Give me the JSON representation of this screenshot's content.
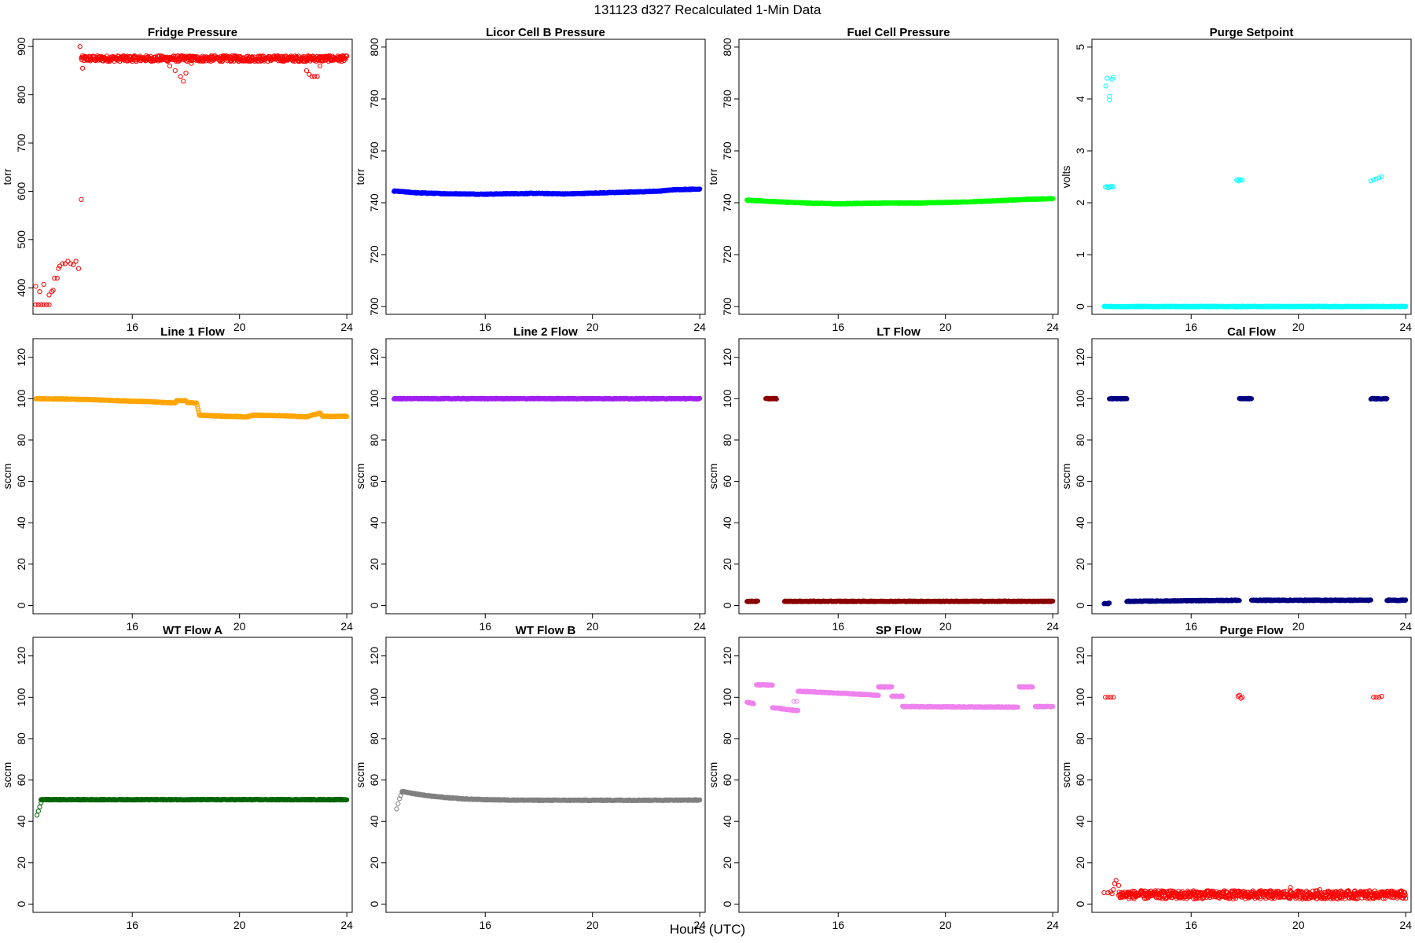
{
  "figure": {
    "title": "131123   d327   Recalculated 1-Min Data",
    "xlabel": "Hours (UTC)"
  },
  "chart_data": [
    {
      "type": "scatter",
      "title": "Fridge Pressure",
      "ylabel": "torr",
      "color": "#ff0000",
      "xlim": [
        12.3,
        24.2
      ],
      "ylim": [
        345,
        915
      ],
      "xticks": [
        16,
        20,
        24
      ],
      "yticks": [
        400,
        500,
        600,
        700,
        800,
        900
      ],
      "series": [
        {
          "x": [
            12.4,
            12.5,
            12.6,
            12.7,
            12.8,
            12.9
          ],
          "y": [
            365,
            365,
            365,
            365,
            365,
            365
          ]
        },
        {
          "x": [
            12.4,
            12.55,
            12.7
          ],
          "y": [
            403,
            392,
            407
          ]
        },
        {
          "x": [
            12.9,
            13.0,
            13.05,
            13.1,
            13.2,
            13.25,
            13.3,
            13.4,
            13.5,
            13.6,
            13.7,
            13.8,
            13.9,
            14.0
          ],
          "y": [
            385,
            392,
            395,
            420,
            420,
            440,
            445,
            450,
            450,
            455,
            450,
            448,
            455,
            440
          ]
        },
        {
          "x": [
            14.1,
            14.05,
            14.15
          ],
          "y": [
            583,
            900,
            855
          ]
        },
        {
          "x": [
            14.1,
            24.0
          ],
          "y": [
            875,
            875
          ],
          "band": true,
          "noise": 6
        },
        {
          "x": [
            17.4,
            17.6,
            17.8,
            17.9,
            18.0,
            18.2
          ],
          "y": [
            860,
            850,
            838,
            828,
            845,
            865
          ]
        },
        {
          "x": [
            22.5,
            22.6,
            22.7,
            22.8,
            22.9,
            23.0,
            23.1
          ],
          "y": [
            850,
            842,
            838,
            838,
            838,
            860,
            870
          ]
        }
      ]
    },
    {
      "type": "line",
      "title": "Licor Cell B Pressure",
      "ylabel": "torr",
      "color": "#0000ff",
      "xlim": [
        12.3,
        24.2
      ],
      "ylim": [
        697,
        803
      ],
      "xticks": [
        16,
        20,
        24
      ],
      "yticks": [
        700,
        720,
        740,
        760,
        780,
        800
      ],
      "series": [
        {
          "x": [
            12.6,
            13.5,
            14.5,
            16.0,
            17.0,
            18.0,
            19.0,
            20.0,
            21.0,
            22.0,
            22.5,
            23.0,
            24.0
          ],
          "y": [
            744.5,
            743.8,
            743.5,
            743.3,
            743.5,
            743.6,
            743.4,
            743.7,
            744.0,
            744.3,
            744.5,
            745.0,
            745.3
          ],
          "band": true
        }
      ]
    },
    {
      "type": "line",
      "title": "Fuel Cell Pressure",
      "ylabel": "torr",
      "color": "#00ff00",
      "xlim": [
        12.3,
        24.2
      ],
      "ylim": [
        697,
        803
      ],
      "xticks": [
        16,
        20,
        24
      ],
      "yticks": [
        700,
        720,
        740,
        760,
        780,
        800
      ],
      "series": [
        {
          "x": [
            12.6,
            13.5,
            14.5,
            16.0,
            17.0,
            18.0,
            19.0,
            20.0,
            21.0,
            22.0,
            23.0,
            24.0
          ],
          "y": [
            741.0,
            740.5,
            740.0,
            739.6,
            739.8,
            739.9,
            739.9,
            740.1,
            740.4,
            740.8,
            741.3,
            741.6
          ],
          "band": true
        }
      ]
    },
    {
      "type": "scatter",
      "title": "Purge Setpoint",
      "ylabel": "volts",
      "color": "#00ffff",
      "xlim": [
        12.3,
        24.2
      ],
      "ylim": [
        -0.15,
        5.15
      ],
      "xticks": [
        16,
        20,
        24
      ],
      "yticks": [
        0,
        1,
        2,
        3,
        4,
        5
      ],
      "series": [
        {
          "x": [
            12.75,
            24.0
          ],
          "y": [
            0,
            0
          ],
          "band": true
        },
        {
          "x": [
            12.8,
            12.85,
            12.9,
            12.95,
            13.0,
            13.05,
            13.1
          ],
          "y": [
            2.3,
            2.31,
            2.29,
            2.3,
            2.32,
            2.3,
            2.31
          ]
        },
        {
          "x": [
            12.82,
            12.87,
            12.95,
            13.05,
            13.1
          ],
          "y": [
            4.25,
            4.4,
            4.05,
            4.38,
            4.42
          ]
        },
        {
          "x": [
            12.95
          ],
          "y": [
            3.98
          ]
        },
        {
          "x": [
            17.7,
            17.75,
            17.8,
            17.85,
            17.9
          ],
          "y": [
            2.44,
            2.42,
            2.45,
            2.43,
            2.44
          ]
        },
        {
          "x": [
            22.7,
            22.8,
            22.9,
            23.0,
            23.1
          ],
          "y": [
            2.42,
            2.44,
            2.46,
            2.48,
            2.5
          ]
        }
      ]
    },
    {
      "type": "line",
      "title": "Line 1 Flow",
      "ylabel": "sccm",
      "color": "#ffa500",
      "xlim": [
        12.3,
        24.2
      ],
      "ylim": [
        -4,
        129
      ],
      "xticks": [
        16,
        20,
        24
      ],
      "yticks": [
        0,
        20,
        40,
        60,
        80,
        100,
        120
      ],
      "series": [
        {
          "x": [
            12.4,
            13.5,
            14.5,
            15.5,
            16.5,
            17.5,
            17.6,
            17.65,
            18.0,
            18.05,
            18.4,
            18.5,
            19.5,
            20.3,
            20.5,
            21.5,
            22.5,
            22.7,
            23.0,
            23.1,
            23.3,
            24.0
          ],
          "y": [
            100,
            99.8,
            99.5,
            99.0,
            98.6,
            98.0,
            98.0,
            99.0,
            99.0,
            98.0,
            98.0,
            92.0,
            91.5,
            91.2,
            92.0,
            91.8,
            91.2,
            92.0,
            93.0,
            91.5,
            91.4,
            91.5
          ],
          "band": true
        }
      ]
    },
    {
      "type": "line",
      "title": "Line 2 Flow",
      "ylabel": "sccm",
      "color": "#a020f0",
      "xlim": [
        12.3,
        24.2
      ],
      "ylim": [
        -4,
        129
      ],
      "xticks": [
        16,
        20,
        24
      ],
      "yticks": [
        0,
        20,
        40,
        60,
        80,
        100,
        120
      ],
      "series": [
        {
          "x": [
            12.6,
            24.0
          ],
          "y": [
            100,
            100
          ],
          "band": true
        }
      ]
    },
    {
      "type": "scatter",
      "title": "LT Flow",
      "ylabel": "sccm",
      "color": "#8b0000",
      "xlim": [
        12.3,
        24.2
      ],
      "ylim": [
        -4,
        129
      ],
      "xticks": [
        16,
        20,
        24
      ],
      "yticks": [
        0,
        20,
        40,
        60,
        80,
        100,
        120
      ],
      "series": [
        {
          "x": [
            12.6,
            13.0
          ],
          "y": [
            2,
            2
          ],
          "band": true
        },
        {
          "x": [
            13.3,
            13.7
          ],
          "y": [
            100,
            100
          ],
          "band": true
        },
        {
          "x": [
            14.0,
            24.0
          ],
          "y": [
            2,
            2
          ],
          "band": true
        }
      ]
    },
    {
      "type": "scatter",
      "title": "Cal Flow",
      "ylabel": "sccm",
      "color": "#000080",
      "xlim": [
        12.3,
        24.2
      ],
      "ylim": [
        -4,
        129
      ],
      "xticks": [
        16,
        20,
        24
      ],
      "yticks": [
        0,
        20,
        40,
        60,
        80,
        100,
        120
      ],
      "series": [
        {
          "x": [
            12.75,
            12.95
          ],
          "y": [
            1,
            1
          ],
          "band": true
        },
        {
          "x": [
            12.95,
            13.6
          ],
          "y": [
            100,
            100
          ],
          "band": true
        },
        {
          "x": [
            13.6,
            17.8
          ],
          "y": [
            2,
            2.5
          ],
          "band": true
        },
        {
          "x": [
            17.8,
            18.25
          ],
          "y": [
            100,
            100
          ],
          "band": true
        },
        {
          "x": [
            18.25,
            22.7
          ],
          "y": [
            2.5,
            2.5
          ],
          "band": true
        },
        {
          "x": [
            22.7,
            23.3
          ],
          "y": [
            100,
            100
          ],
          "band": true
        },
        {
          "x": [
            23.3,
            24.0
          ],
          "y": [
            2.5,
            2.5
          ],
          "band": true
        }
      ]
    },
    {
      "type": "line",
      "title": "WT Flow A",
      "ylabel": "sccm",
      "color": "#006400",
      "xlim": [
        12.3,
        24.2
      ],
      "ylim": [
        -4,
        129
      ],
      "xticks": [
        16,
        20,
        24
      ],
      "yticks": [
        0,
        20,
        40,
        60,
        80,
        100,
        120
      ],
      "series": [
        {
          "x": [
            12.45,
            12.5,
            12.55,
            12.6
          ],
          "y": [
            43,
            45,
            47,
            49
          ]
        },
        {
          "x": [
            12.6,
            24.0
          ],
          "y": [
            50.5,
            50.5
          ],
          "band": true
        }
      ]
    },
    {
      "type": "line",
      "title": "WT Flow B",
      "ylabel": "sccm",
      "color": "#808080",
      "xlim": [
        12.3,
        24.2
      ],
      "ylim": [
        -4,
        129
      ],
      "xticks": [
        16,
        20,
        24
      ],
      "yticks": [
        0,
        20,
        40,
        60,
        80,
        100,
        120
      ],
      "series": [
        {
          "x": [
            12.7,
            12.75,
            12.8,
            12.85,
            12.9
          ],
          "y": [
            46,
            48.5,
            51,
            52.5,
            54
          ]
        },
        {
          "x": [
            12.9,
            13.3,
            13.8,
            14.5,
            15.3,
            16.0,
            17.0,
            18.0,
            20.0,
            22.0,
            24.0
          ],
          "y": [
            54.5,
            53.5,
            52.5,
            51.5,
            50.8,
            50.5,
            50.3,
            50.2,
            50.2,
            50.2,
            50.3
          ],
          "band": true
        }
      ]
    },
    {
      "type": "line",
      "title": "SP Flow",
      "ylabel": "sccm",
      "color": "#ee82ee",
      "xlim": [
        12.3,
        24.2
      ],
      "ylim": [
        -4,
        129
      ],
      "xticks": [
        16,
        20,
        24
      ],
      "yticks": [
        0,
        20,
        40,
        60,
        80,
        100,
        120
      ],
      "series": [
        {
          "x": [
            12.6,
            12.85
          ],
          "y": [
            97.5,
            97
          ],
          "band": true
        },
        {
          "x": [
            12.95,
            13.55
          ],
          "y": [
            106,
            106
          ],
          "band": true
        },
        {
          "x": [
            13.55,
            14.5
          ],
          "y": [
            95,
            93.5
          ],
          "band": true
        },
        {
          "x": [
            14.35,
            14.45
          ],
          "y": [
            98,
            98
          ]
        },
        {
          "x": [
            14.5,
            17.5
          ],
          "y": [
            103,
            101
          ],
          "band": true
        },
        {
          "x": [
            17.5,
            18.0
          ],
          "y": [
            105,
            105
          ],
          "band": true
        },
        {
          "x": [
            18.0,
            18.4
          ],
          "y": [
            100.5,
            100.5
          ],
          "band": true
        },
        {
          "x": [
            18.4,
            22.7
          ],
          "y": [
            95.5,
            95.2
          ],
          "band": true
        },
        {
          "x": [
            22.75,
            23.25
          ],
          "y": [
            105,
            105
          ],
          "band": true
        },
        {
          "x": [
            23.35,
            24.0
          ],
          "y": [
            95.5,
            95.5
          ],
          "band": true
        }
      ]
    },
    {
      "type": "scatter",
      "title": "Purge Flow",
      "ylabel": "sccm",
      "color": "#ff0000",
      "xlim": [
        12.3,
        24.2
      ],
      "ylim": [
        -4,
        129
      ],
      "xticks": [
        16,
        20,
        24
      ],
      "yticks": [
        0,
        20,
        40,
        60,
        80,
        100,
        120
      ],
      "series": [
        {
          "x": [
            12.8,
            12.9,
            13.0,
            13.1
          ],
          "y": [
            100,
            100,
            100,
            100
          ]
        },
        {
          "x": [
            17.75,
            17.8,
            17.85,
            17.9
          ],
          "y": [
            100.5,
            101,
            99.5,
            100
          ]
        },
        {
          "x": [
            22.8,
            22.9,
            23.0,
            23.1
          ],
          "y": [
            100,
            100,
            100,
            100.5
          ]
        },
        {
          "x": [
            12.75,
            12.9,
            13.0,
            13.05,
            13.1,
            13.15,
            13.2,
            13.3
          ],
          "y": [
            5.5,
            5.5,
            6,
            5,
            7,
            10,
            11.5,
            9
          ]
        },
        {
          "x": [
            13.3,
            24.0
          ],
          "y": [
            4.5,
            4.5
          ],
          "band": true,
          "noise": 2
        },
        {
          "x": [
            19.7,
            20.8,
            22.6
          ],
          "y": [
            8,
            7,
            5
          ]
        }
      ]
    }
  ]
}
